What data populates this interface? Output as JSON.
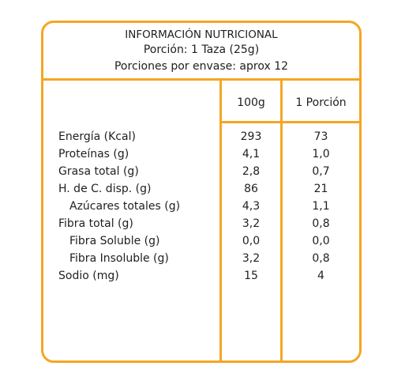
{
  "header": {
    "title": "INFORMACIÓN NUTRICIONAL",
    "serving": "Porción: 1 Taza (25g)",
    "servings_per_container": "Porciones por envase: aprox 12"
  },
  "columns": {
    "per_100g": "100g",
    "per_serving": "1 Porción"
  },
  "nutrients": [
    {
      "name": "Energía (Kcal)",
      "per_100g": "293",
      "per_serving": "73",
      "indent": false
    },
    {
      "name": "Proteínas (g)",
      "per_100g": "4,1",
      "per_serving": "1,0",
      "indent": false
    },
    {
      "name": "Grasa total (g)",
      "per_100g": "2,8",
      "per_serving": "0,7",
      "indent": false
    },
    {
      "name": "H. de C. disp. (g)",
      "per_100g": "86",
      "per_serving": "21",
      "indent": false
    },
    {
      "name": "Azúcares totales (g)",
      "per_100g": "4,3",
      "per_serving": "1,1",
      "indent": true
    },
    {
      "name": "Fibra total (g)",
      "per_100g": "3,2",
      "per_serving": "0,8",
      "indent": false
    },
    {
      "name": "Fibra Soluble (g)",
      "per_100g": "0,0",
      "per_serving": "0,0",
      "indent": true
    },
    {
      "name": "Fibra Insoluble (g)",
      "per_100g": "3,2",
      "per_serving": "0,8",
      "indent": true
    },
    {
      "name": "Sodio (mg)",
      "per_100g": "15",
      "per_serving": "4",
      "indent": false
    }
  ],
  "colors": {
    "border": "#f5a623",
    "text": "#1f1f1f"
  }
}
